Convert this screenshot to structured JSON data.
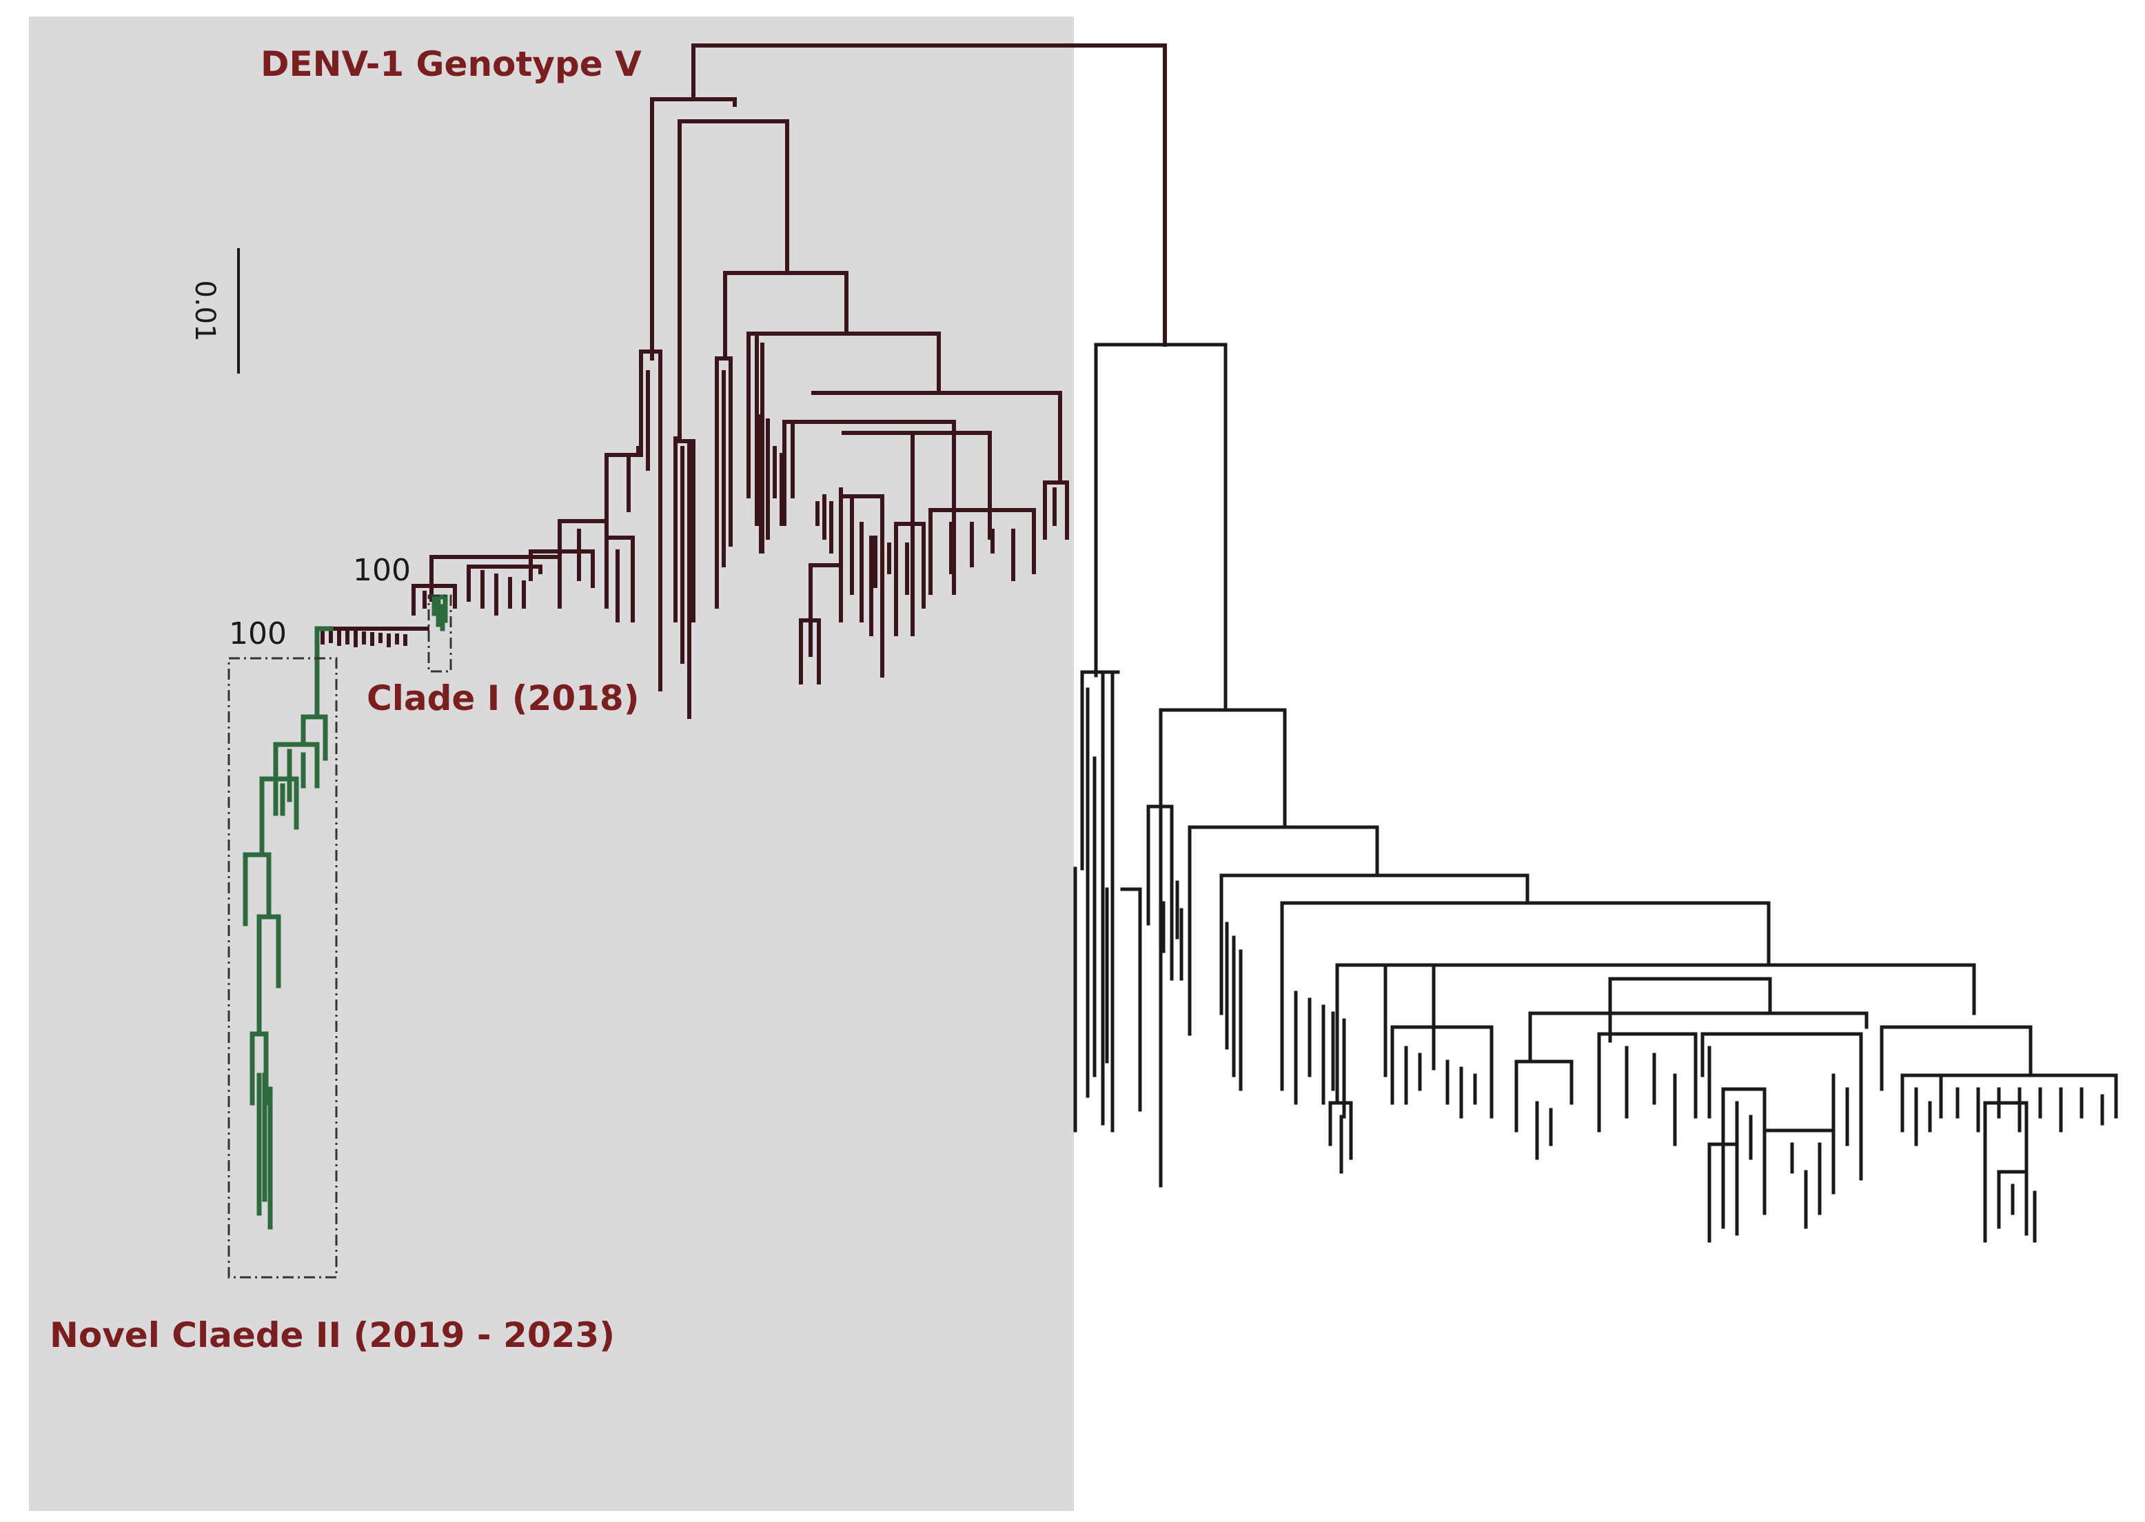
{
  "labels": {
    "genotype": "DENV-1 Genotype V",
    "clade1": "Clade I (2018)",
    "clade2": "Novel Claede II (2019 - 2023)"
  },
  "bootstrap": {
    "clade1": "100",
    "clade2": "100"
  },
  "scale_bar": {
    "label": "0.01"
  },
  "colors": {
    "highlight_region": "#dcd9dc",
    "tree_branches": "#1a1a1a",
    "genotype_v_branches": "#3a1418",
    "novel_clade_branches": "#2e6b3c",
    "label_text": "#7a1f1f"
  }
}
